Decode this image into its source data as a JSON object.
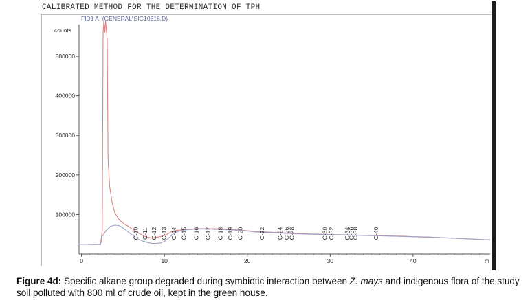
{
  "header": {
    "method_title": "CALIBRATED METHOD FOR THE DETERMINATION OF TPH"
  },
  "chart_data": {
    "type": "line",
    "signal_label": "FID1 A, (GENERAL\\SIG10816.D)",
    "y_unit_label": "counts",
    "x_unit_label": "m",
    "xlim": [
      -0.3,
      49.3
    ],
    "ylim": [
      0,
      580000
    ],
    "x_ticks": [
      0,
      10,
      20,
      30,
      40
    ],
    "y_ticks": [
      100000,
      200000,
      300000,
      400000,
      500000
    ],
    "grid": false,
    "series": [
      {
        "points": [
          [
            -0.3,
            25000
          ],
          [
            1.5,
            24000
          ],
          [
            2.3,
            25000
          ],
          [
            2.5,
            60000
          ],
          [
            2.6,
            560000
          ],
          [
            2.7,
            590000
          ],
          [
            2.8,
            560000
          ],
          [
            2.9,
            590000
          ],
          [
            3.1,
            540000
          ],
          [
            3.2,
            240000
          ],
          [
            3.4,
            170000
          ],
          [
            3.7,
            130000
          ],
          [
            4.0,
            105000
          ],
          [
            4.5,
            88000
          ],
          [
            5.0,
            78000
          ],
          [
            5.5,
            72000
          ],
          [
            6.0,
            65000
          ],
          [
            6.5,
            58000
          ],
          [
            7.0,
            52000
          ],
          [
            7.5,
            46000
          ],
          [
            8.0,
            42000
          ],
          [
            8.5,
            41000
          ],
          [
            9.0,
            42000
          ],
          [
            9.5,
            44000
          ],
          [
            10.0,
            47000
          ],
          [
            10.5,
            52000
          ],
          [
            11.0,
            58000
          ],
          [
            11.5,
            60000
          ],
          [
            12.0,
            61000
          ],
          [
            12.5,
            63000
          ],
          [
            13.0,
            63000
          ],
          [
            14.0,
            64000
          ],
          [
            15.0,
            64000
          ],
          [
            16.0,
            64000
          ],
          [
            17.0,
            63000
          ],
          [
            18.0,
            62000
          ],
          [
            19.0,
            61000
          ],
          [
            20.0,
            59000
          ],
          [
            21.0,
            57000
          ],
          [
            22.0,
            56000
          ],
          [
            23.0,
            55000
          ],
          [
            24.0,
            54000
          ],
          [
            25.0,
            53000
          ],
          [
            26.0,
            52000
          ],
          [
            27.0,
            51000
          ],
          [
            28.0,
            50500
          ],
          [
            29.0,
            50000
          ],
          [
            30.0,
            49500
          ],
          [
            31.0,
            49000
          ],
          [
            32.0,
            48500
          ],
          [
            33.0,
            48000
          ],
          [
            34.0,
            47500
          ],
          [
            35.0,
            47000
          ],
          [
            36.0,
            46500
          ],
          [
            37.0,
            46000
          ],
          [
            38.0,
            45500
          ],
          [
            39.0,
            45000
          ],
          [
            40.0,
            44000
          ],
          [
            41.0,
            43500
          ],
          [
            42.0,
            43000
          ],
          [
            43.0,
            42000
          ],
          [
            44.0,
            41000
          ],
          [
            45.0,
            40000
          ],
          [
            46.0,
            39000
          ],
          [
            47.0,
            38000
          ],
          [
            48.0,
            37000
          ],
          [
            49.3,
            36000
          ]
        ],
        "color": "#d98585"
      },
      {
        "points": [
          [
            -0.3,
            25000
          ],
          [
            1.5,
            24000
          ],
          [
            2.3,
            24000
          ],
          [
            2.5,
            45000
          ],
          [
            3.0,
            60000
          ],
          [
            3.5,
            70000
          ],
          [
            4.0,
            73000
          ],
          [
            4.5,
            72000
          ],
          [
            5.0,
            66000
          ],
          [
            5.5,
            58000
          ],
          [
            6.0,
            50000
          ],
          [
            6.5,
            42000
          ],
          [
            7.0,
            36000
          ],
          [
            7.5,
            32000
          ],
          [
            8.0,
            29000
          ],
          [
            8.5,
            27000
          ],
          [
            9.0,
            27000
          ],
          [
            9.5,
            28000
          ],
          [
            10.0,
            32000
          ],
          [
            10.5,
            40000
          ],
          [
            11.0,
            50000
          ],
          [
            11.5,
            56000
          ],
          [
            12.0,
            59000
          ],
          [
            12.5,
            61000
          ],
          [
            13.0,
            62000
          ],
          [
            14.0,
            63000
          ],
          [
            15.0,
            63000
          ],
          [
            16.0,
            62500
          ],
          [
            17.0,
            62000
          ],
          [
            18.0,
            61000
          ],
          [
            19.0,
            60000
          ],
          [
            20.0,
            58000
          ],
          [
            21.0,
            56000
          ],
          [
            22.0,
            55000
          ],
          [
            23.0,
            54000
          ],
          [
            24.0,
            53000
          ],
          [
            25.0,
            52000
          ],
          [
            26.0,
            51000
          ],
          [
            27.0,
            50500
          ],
          [
            28.0,
            50000
          ],
          [
            29.0,
            49500
          ],
          [
            30.0,
            49000
          ],
          [
            31.0,
            48500
          ],
          [
            32.0,
            48000
          ],
          [
            33.0,
            47500
          ],
          [
            34.0,
            47000
          ],
          [
            35.0,
            46500
          ],
          [
            36.0,
            46000
          ],
          [
            37.0,
            45500
          ],
          [
            38.0,
            45000
          ],
          [
            39.0,
            44500
          ],
          [
            40.0,
            44000
          ],
          [
            41.0,
            43000
          ],
          [
            42.0,
            42500
          ],
          [
            43.0,
            42000
          ],
          [
            44.0,
            41000
          ],
          [
            45.0,
            40000
          ],
          [
            46.0,
            39000
          ],
          [
            47.0,
            38000
          ],
          [
            48.0,
            37000
          ],
          [
            49.3,
            36000
          ]
        ],
        "color": "#9aa0c8"
      }
    ],
    "peak_labels": [
      {
        "label": "C-10",
        "x": 6.8
      },
      {
        "label": "C-11",
        "x": 7.9
      },
      {
        "label": "C-12",
        "x": 9.0
      },
      {
        "label": "C-13",
        "x": 10.2
      },
      {
        "label": "C-14",
        "x": 11.4
      },
      {
        "label": "C-15",
        "x": 12.6
      },
      {
        "label": "C-16",
        "x": 14.1
      },
      {
        "label": "C-17",
        "x": 15.5
      },
      {
        "label": "C-18",
        "x": 17.0
      },
      {
        "label": "C-19",
        "x": 18.2
      },
      {
        "label": "C-20",
        "x": 19.4
      },
      {
        "label": "C-22",
        "x": 22.0
      },
      {
        "label": "C-24",
        "x": 24.2
      },
      {
        "label": "C-26",
        "x": 25.0
      },
      {
        "label": "C-28",
        "x": 25.6
      },
      {
        "label": "C-30",
        "x": 29.6
      },
      {
        "label": "C-32",
        "x": 30.4
      },
      {
        "label": "C-34",
        "x": 32.3
      },
      {
        "label": "C-36",
        "x": 32.8
      },
      {
        "label": "C-38",
        "x": 33.3
      },
      {
        "label": "C-40",
        "x": 35.8
      }
    ]
  },
  "caption": {
    "label": "Figure 4d:",
    "text_before": " Specific alkane group degraded during symbiotic interaction between ",
    "species": "Z. mays",
    "text_after": " and indigenous flora of the study soil polluted with 800 ml of crude oil, kept in the green house."
  }
}
